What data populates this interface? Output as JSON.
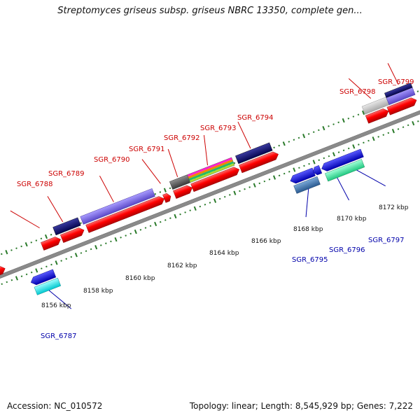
{
  "header": {
    "title": "Streptomyces griseus subsp. griseus NBRC 13350, complete gen..."
  },
  "footer": {
    "accession": "Accession: NC_010572",
    "summary": "Topology: linear; Length: 8,545,929 bp; Genes: 7,222"
  },
  "colors": {
    "backbone": "#8a8a8a",
    "tick": "#2a7a2a",
    "gene_red": "#ff0000",
    "navy": "#0a0a6e",
    "lavender": "#7b68ee",
    "blue": "#0a0aee",
    "cyan": "#00e5ee",
    "steel": "#4682b4",
    "mint": "#3cf0a0",
    "gray": "#666666",
    "lightgray": "#c8c8c8",
    "label_red": "#cc0000",
    "label_blue": "#0000aa"
  },
  "scale_labels": [
    "8156 kbp",
    "8158 kbp",
    "8160 kbp",
    "8162 kbp",
    "8164 kbp",
    "8166 kbp",
    "8168 kbp",
    "8170 kbp",
    "8172 kbp"
  ],
  "top_labels": [
    "SGR_6788",
    "SGR_6789",
    "SGR_6790",
    "SGR_6791",
    "SGR_6792",
    "SGR_6793",
    "SGR_6794",
    "SGR_6798",
    "SGR_6799"
  ],
  "bottom_labels": [
    "SGR_6787",
    "SGR_6795",
    "SGR_6796",
    "SGR_6797"
  ]
}
